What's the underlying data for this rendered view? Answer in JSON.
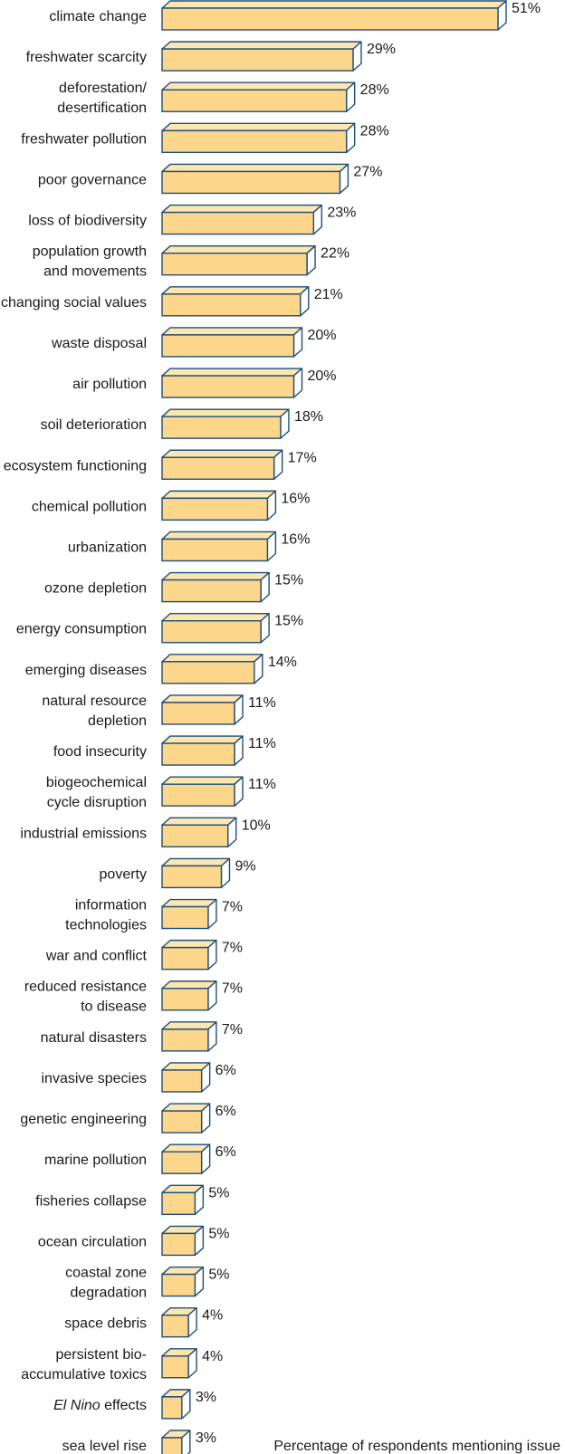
{
  "chart_data": {
    "type": "bar",
    "orientation": "horizontal",
    "value_suffix": "%",
    "xlabel": "Percentage of respondents mentioning issue",
    "ylabel": "",
    "title": "",
    "legend": "none",
    "grid": false,
    "xlim": [
      0,
      51
    ],
    "categories": [
      [
        "climate change"
      ],
      [
        "freshwater scarcity"
      ],
      [
        "deforestation/",
        "desertification"
      ],
      [
        "freshwater pollution"
      ],
      [
        "poor governance"
      ],
      [
        "loss of biodiversity"
      ],
      [
        "population growth",
        "and movements"
      ],
      [
        "changing social values"
      ],
      [
        "waste disposal"
      ],
      [
        "air pollution"
      ],
      [
        "soil deterioration"
      ],
      [
        "ecosystem functioning"
      ],
      [
        "chemical pollution"
      ],
      [
        "urbanization"
      ],
      [
        "ozone depletion"
      ],
      [
        "energy consumption"
      ],
      [
        "emerging diseases"
      ],
      [
        "natural resource",
        "depletion"
      ],
      [
        "food insecurity"
      ],
      [
        "biogeochemical",
        "cycle disruption"
      ],
      [
        "industrial emissions"
      ],
      [
        "poverty"
      ],
      [
        "information",
        "technologies"
      ],
      [
        "war and conflict"
      ],
      [
        "reduced resistance",
        "to disease"
      ],
      [
        "natural disasters"
      ],
      [
        "invasive species"
      ],
      [
        "genetic engineering"
      ],
      [
        "marine pollution"
      ],
      [
        "fisheries collapse"
      ],
      [
        "ocean circulation"
      ],
      [
        "coastal zone",
        "degradation"
      ],
      [
        "space debris"
      ],
      [
        "persistent bio-",
        "accumulative toxics"
      ],
      [
        "El Nino effects"
      ],
      [
        "sea level rise"
      ]
    ],
    "italic_prefix": {
      "El Nino effects": "El Nino"
    },
    "values": [
      51,
      29,
      28,
      28,
      27,
      23,
      22,
      21,
      20,
      20,
      18,
      17,
      16,
      16,
      15,
      15,
      14,
      11,
      11,
      11,
      10,
      9,
      7,
      7,
      7,
      7,
      6,
      6,
      6,
      5,
      5,
      5,
      4,
      4,
      3,
      3
    ],
    "colors": {
      "bar_front": "#fcd68a",
      "bar_top": "#fde6b0",
      "bar_side": "#ffffff",
      "bar_stroke": "#1f4e79"
    }
  }
}
